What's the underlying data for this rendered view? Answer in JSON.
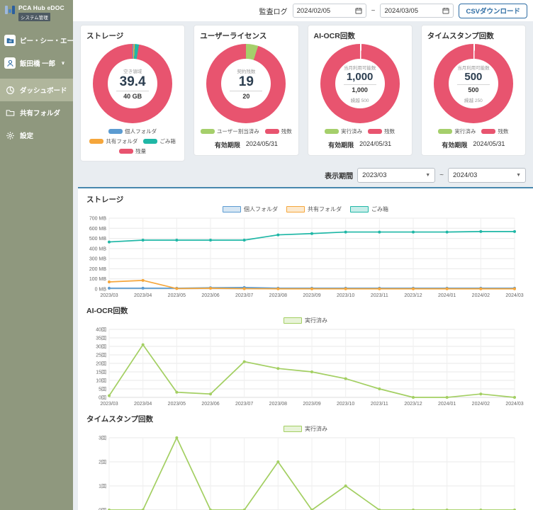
{
  "app": {
    "title": "PCA Hub eDOC",
    "badge": "システム管理"
  },
  "sidebar": {
    "items": [
      {
        "label": "ピー・シー・エー"
      },
      {
        "label": "飯田橋  一郎",
        "chevron": "∨"
      },
      {
        "label": "ダッシュボード"
      },
      {
        "label": "共有フォルダ"
      },
      {
        "label": "設定"
      }
    ]
  },
  "header": {
    "audit_label": "監査ログ",
    "date_from": "2024/02/05",
    "range_separator": "~",
    "date_to": "2024/03/05",
    "csv_button": "CSVダウンロード"
  },
  "cards": [
    {
      "title": "ストレージ",
      "center_label": "空き領域",
      "center_value": "39.4",
      "center_sub": "40 GB",
      "donut": [
        {
          "color": "#5b9bd1",
          "pct": 0.4
        },
        {
          "color": "#f5a63b",
          "pct": 0.5
        },
        {
          "color": "#1fb7a6",
          "pct": 1.7
        },
        {
          "color": "#e8546f",
          "pct": 97.4
        }
      ],
      "legend": [
        {
          "label": "個人フォルダ",
          "color": "#5b9bd1"
        },
        {
          "label": "共有フォルダ",
          "color": "#f5a63b"
        },
        {
          "label": "ごみ箱",
          "color": "#1fb7a6"
        },
        {
          "label": "残量",
          "color": "#e8546f"
        }
      ]
    },
    {
      "title": "ユーザーライセンス",
      "center_label": "契約残数",
      "center_value": "19",
      "center_sub": "20",
      "donut": [
        {
          "color": "#a5cf6b",
          "pct": 5
        },
        {
          "color": "#e8546f",
          "pct": 95
        }
      ],
      "legend": [
        {
          "label": "ユーザー割当済み",
          "color": "#a5cf6b"
        },
        {
          "label": "残数",
          "color": "#e8546f"
        }
      ],
      "expiry_label": "有効期限",
      "expiry_value": "2024/05/31"
    },
    {
      "title": "AI-OCR回数",
      "center_label": "当月利用可能数",
      "center_value": "1,000",
      "center_sub": "1,000",
      "center_note": "繰越 500",
      "donut": [
        {
          "color": "#ffffff",
          "pct": 0.6
        },
        {
          "color": "#e8546f",
          "pct": 99.4
        }
      ],
      "legend": [
        {
          "label": "実行済み",
          "color": "#a5cf6b"
        },
        {
          "label": "残数",
          "color": "#e8546f"
        }
      ],
      "expiry_label": "有効期限",
      "expiry_value": "2024/05/31"
    },
    {
      "title": "タイムスタンプ回数",
      "center_label": "当月利用可能数",
      "center_value": "500",
      "center_sub": "500",
      "center_note": "繰越 250",
      "donut": [
        {
          "color": "#ffffff",
          "pct": 0.6
        },
        {
          "color": "#e8546f",
          "pct": 99.4
        }
      ],
      "legend": [
        {
          "label": "実行済み",
          "color": "#a5cf6b"
        },
        {
          "label": "残数",
          "color": "#e8546f"
        }
      ],
      "expiry_label": "有効期限",
      "expiry_value": "2024/05/31"
    }
  ],
  "period": {
    "label": "表示期間",
    "from": "2023/03",
    "separator": "~",
    "to": "2024/03"
  },
  "chart_data": [
    {
      "type": "line",
      "title": "ストレージ",
      "categories": [
        "2023/03",
        "2023/04",
        "2023/05",
        "2023/06",
        "2023/07",
        "2023/08",
        "2023/09",
        "2023/10",
        "2023/11",
        "2023/12",
        "2024/01",
        "2024/02",
        "2024/03"
      ],
      "series": [
        {
          "name": "個人フォルダ",
          "color": "#5b9bd1",
          "values": [
            8,
            8,
            8,
            12,
            15,
            8,
            8,
            8,
            8,
            8,
            8,
            8,
            8
          ]
        },
        {
          "name": "共有フォルダ",
          "color": "#f5a63b",
          "values": [
            70,
            85,
            4,
            7,
            3,
            2,
            2,
            2,
            2,
            2,
            2,
            2,
            2
          ]
        },
        {
          "name": "ごみ箱",
          "color": "#1fb7a6",
          "values": [
            465,
            483,
            483,
            483,
            483,
            535,
            548,
            563,
            563,
            563,
            563,
            568,
            568
          ]
        }
      ],
      "ylim": [
        0,
        700
      ],
      "ystep": 100,
      "unit": " MB",
      "grid": true,
      "legend_position": "top",
      "height": 122
    },
    {
      "type": "line",
      "title": "AI-OCR回数",
      "categories": [
        "2023/03",
        "2023/04",
        "2023/05",
        "2023/06",
        "2023/07",
        "2023/08",
        "2023/09",
        "2023/10",
        "2023/11",
        "2023/12",
        "2024/01",
        "2024/02",
        "2024/03"
      ],
      "series": [
        {
          "name": "実行済み",
          "color": "#a3cf62",
          "values": [
            1,
            31,
            3,
            2,
            21,
            17,
            15,
            11,
            5,
            0,
            0,
            2,
            0
          ]
        }
      ],
      "ylim": [
        0,
        40
      ],
      "ystep": 5,
      "unit": "回",
      "grid": true,
      "legend_position": "top",
      "height": 118
    },
    {
      "type": "line",
      "title": "タイムスタンプ回数",
      "categories": [
        "2023/03",
        "2023/04",
        "2023/05",
        "2023/06",
        "2023/07",
        "2023/08",
        "2023/09",
        "2023/10",
        "2023/11",
        "2023/12",
        "2024/01",
        "2024/02",
        "2024/03"
      ],
      "series": [
        {
          "name": "実行済み",
          "color": "#a3cf62",
          "values": [
            0,
            0,
            3,
            0,
            0,
            2,
            0,
            1,
            0,
            0,
            0,
            0,
            0
          ]
        }
      ],
      "ylim": [
        0,
        3
      ],
      "ystep": 1,
      "unit": "回",
      "grid": true,
      "legend_position": "top",
      "height": 124
    }
  ]
}
